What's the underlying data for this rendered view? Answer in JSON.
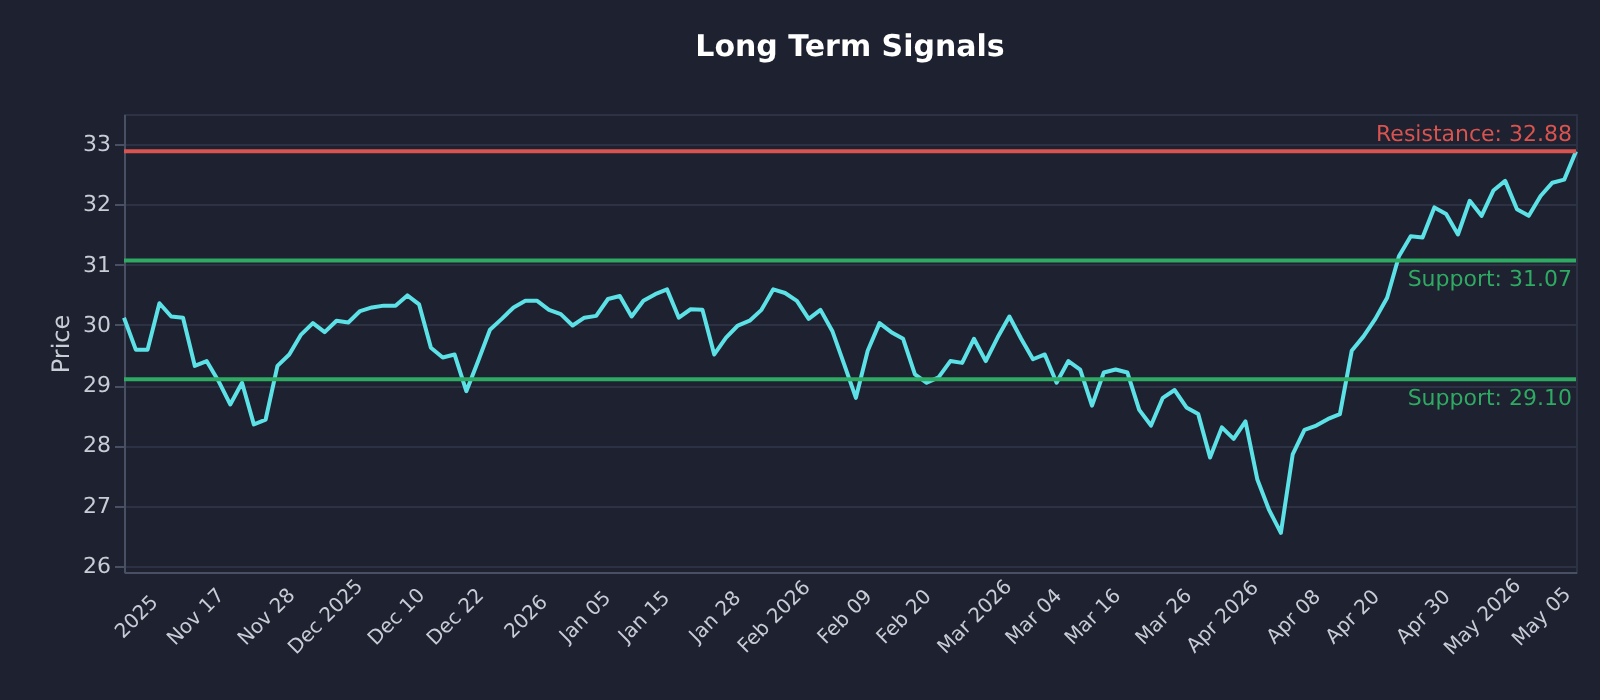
{
  "chart_data": {
    "type": "line",
    "title": "Long Term Signals",
    "ylabel": "Price",
    "categories": [
      null,
      "2025",
      null,
      null,
      null,
      null,
      "Nov 17",
      null,
      null,
      null,
      null,
      null,
      "Nov 28",
      null,
      null,
      null,
      null,
      "Dec 2025",
      null,
      null,
      null,
      null,
      null,
      "Dec 10",
      null,
      null,
      null,
      null,
      "Dec 22",
      null,
      null,
      null,
      null,
      null,
      "2026",
      null,
      null,
      null,
      null,
      "Jan 05",
      null,
      null,
      null,
      null,
      "Jan 15",
      null,
      null,
      null,
      null,
      null,
      "Jan 28",
      null,
      null,
      null,
      null,
      "Feb 2026",
      null,
      null,
      null,
      null,
      null,
      "Feb 09",
      null,
      null,
      null,
      null,
      "Feb 20",
      null,
      null,
      null,
      null,
      null,
      "Mar 2026",
      null,
      null,
      null,
      null,
      "Mar 04",
      null,
      null,
      null,
      null,
      "Mar 16",
      null,
      null,
      null,
      null,
      null,
      "Mar 26",
      null,
      null,
      null,
      null,
      "Apr 2026",
      null,
      null,
      null,
      null,
      null,
      "Apr 08",
      null,
      null,
      null,
      null,
      "Apr 20",
      null,
      null,
      null,
      null,
      null,
      "Apr 30",
      null,
      null,
      null,
      null,
      "May 2026",
      null,
      null,
      null,
      null,
      "May 05",
      null,
      null,
      null
    ],
    "series": [
      {
        "color": "#5ce1e6",
        "values": [
          30.12,
          29.59,
          29.59,
          30.36,
          30.14,
          30.12,
          29.32,
          29.4,
          29.07,
          28.68,
          29.04,
          28.35,
          28.43,
          29.32,
          29.51,
          29.84,
          30.03,
          29.88,
          30.07,
          30.04,
          30.23,
          30.29,
          30.32,
          30.32,
          30.49,
          30.34,
          29.62,
          29.46,
          29.51,
          28.9,
          29.4,
          29.92,
          30.1,
          30.29,
          30.4,
          30.4,
          30.25,
          30.18,
          29.99,
          30.12,
          30.15,
          30.43,
          30.48,
          30.14,
          30.4,
          30.51,
          30.59,
          30.12,
          30.26,
          30.25,
          29.51,
          29.79,
          29.99,
          30.07,
          30.25,
          30.59,
          30.53,
          30.4,
          30.1,
          30.25,
          29.9,
          29.35,
          28.79,
          29.57,
          30.03,
          29.88,
          29.77,
          29.18,
          29.04,
          29.13,
          29.4,
          29.37,
          29.77,
          29.4,
          29.79,
          30.14,
          29.77,
          29.43,
          29.51,
          29.04,
          29.4,
          29.26,
          28.66,
          29.21,
          29.26,
          29.21,
          28.59,
          28.33,
          28.79,
          28.92,
          28.63,
          28.52,
          27.8,
          28.3,
          28.11,
          28.4,
          27.44,
          26.93,
          26.55,
          27.85,
          28.26,
          28.33,
          28.44,
          28.52,
          29.57,
          29.81,
          30.1,
          30.45,
          31.14,
          31.47,
          31.45,
          31.95,
          31.84,
          31.5,
          32.06,
          31.81,
          32.23,
          32.39,
          31.92,
          31.81,
          32.14,
          32.36,
          32.41,
          32.88
        ]
      }
    ],
    "ylim": [
      25.9,
      33.5
    ],
    "yticks": [
      26,
      27,
      28,
      29,
      30,
      31,
      32,
      33
    ],
    "ref_lines": [
      {
        "axis": "y",
        "value": 32.88,
        "label": "Resistance: 32.88",
        "color": "#d9534f"
      },
      {
        "axis": "y",
        "value": 31.07,
        "label": "Support: 31.07",
        "color": "#2eaa62"
      },
      {
        "axis": "y",
        "value": 29.1,
        "label": "Support: 29.10",
        "color": "#2eaa62"
      }
    ],
    "grid": "y"
  }
}
